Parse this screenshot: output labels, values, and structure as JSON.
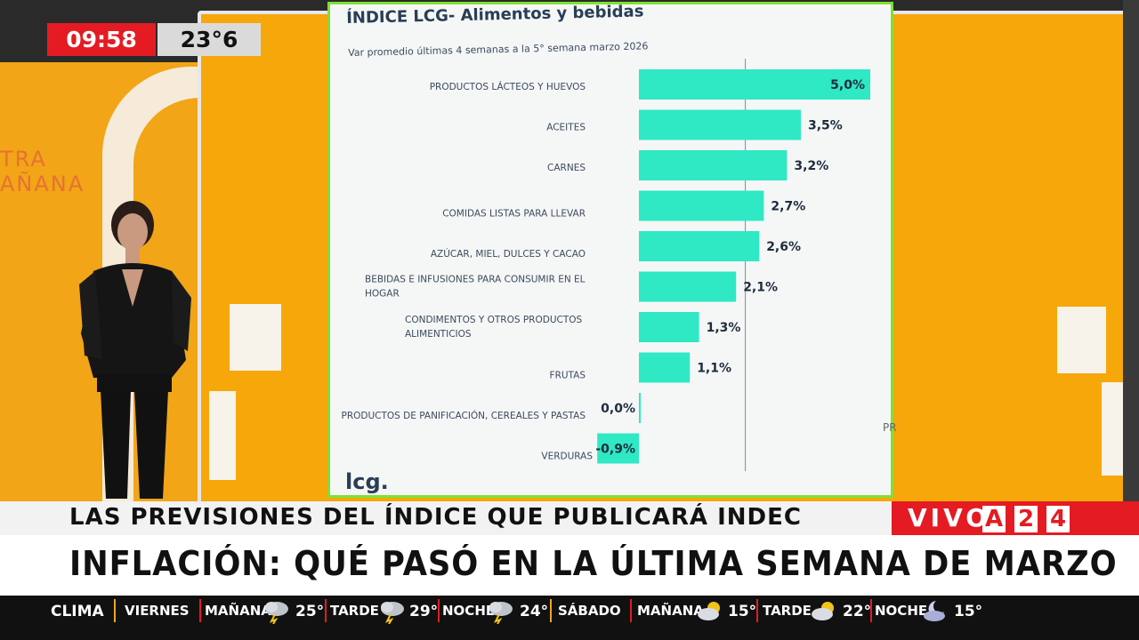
{
  "overlay": {
    "time": "09:58",
    "temperature": "23°6"
  },
  "background_sign": {
    "line1": "TRA",
    "line2": "AÑANA"
  },
  "chart": {
    "title": "ÍNDICE LCG- Alimentos y bebidas",
    "subtitle": "Var promedio últimas 4 semanas a la 5° semana marzo 2026",
    "logo": "lcg.",
    "footer": "Promedio",
    "side_text": "PR"
  },
  "chart_data": {
    "type": "bar",
    "orientation": "horizontal",
    "title": "ÍNDICE LCG- Alimentos y bebidas",
    "subtitle": "Var promedio últimas 4 semanas a la 5° semana marzo 2026",
    "categories": [
      "PRODUCTOS LÁCTEOS Y HUEVOS",
      "ACEITES",
      "CARNES",
      "COMIDAS LISTAS PARA LLEVAR",
      "AZÚCAR, MIEL, DULCES Y CACAO",
      "BEBIDAS E INFUSIONES PARA CONSUMIR EN EL HOGAR",
      "CONDIMENTOS Y OTROS PRODUCTOS ALIMENTICIOS",
      "FRUTAS",
      "PRODUCTOS DE PANIFICACIÓN, CEREALES Y PASTAS",
      "VERDURAS"
    ],
    "category_lines": [
      [
        "PRODUCTOS LÁCTEOS Y HUEVOS"
      ],
      [
        "ACEITES"
      ],
      [
        "CARNES"
      ],
      [
        "COMIDAS LISTAS PARA LLEVAR"
      ],
      [
        "AZÚCAR, MIEL, DULCES Y CACAO"
      ],
      [
        "BEBIDAS E INFUSIONES PARA CONSUMIR EN EL",
        "HOGAR"
      ],
      [
        "CONDIMENTOS Y OTROS PRODUCTOS",
        "ALIMENTICIOS"
      ],
      [
        "FRUTAS"
      ],
      [
        "PRODUCTOS DE PANIFICACIÓN, CEREALES Y PASTAS"
      ],
      [
        "VERDURAS"
      ]
    ],
    "values": [
      5.0,
      3.5,
      3.2,
      2.7,
      2.6,
      2.1,
      1.3,
      1.1,
      0.0,
      -0.9
    ],
    "labels": [
      "5,0%",
      "3,5%",
      "3,2%",
      "2,7%",
      "2,6%",
      "2,1%",
      "1,3%",
      "1,1%",
      "0,0%",
      "-0,9%"
    ],
    "unit": "%",
    "reference_line_value": 2.3,
    "bar_color": "#2fe8c4",
    "grid": false
  },
  "lower_third": {
    "subtitle": "LAS PREVISIONES DEL ÍNDICE QUE PUBLICARÁ INDEC",
    "headline": "INFLACIÓN: QUÉ PASÓ EN LA ÚLTIMA SEMANA DE MARZO",
    "live": "VIVO",
    "channel_chars": [
      "A",
      "2",
      "4"
    ]
  },
  "ticker": {
    "label": "CLIMA",
    "day1": "VIERNES",
    "day1_morning_label": "MAÑANA",
    "day1_morning_icon": "storm-icon",
    "day1_morning_temp": "25°",
    "day1_afternoon_label": "TARDE",
    "day1_afternoon_icon": "storm-icon",
    "day1_afternoon_temp": "29°",
    "day1_night_label": "NOCHE",
    "day1_night_icon": "storm-icon",
    "day1_night_temp": "24°",
    "day2": "SÁBADO",
    "day2_morning_label": "MAÑANA",
    "day2_morning_icon": "partly-cloudy-icon",
    "day2_morning_temp": "15°",
    "day2_afternoon_label": "TARDE",
    "day2_afternoon_icon": "partly-cloudy-icon",
    "day2_afternoon_temp": "22°",
    "day2_night_label": "NOCHE",
    "day2_night_icon": "moon-cloud-icon",
    "day2_night_temp": "15°"
  },
  "colors": {
    "brand_red": "#e41b23",
    "studio_orange": "#f6a70a",
    "panel_border": "#7fe033"
  }
}
